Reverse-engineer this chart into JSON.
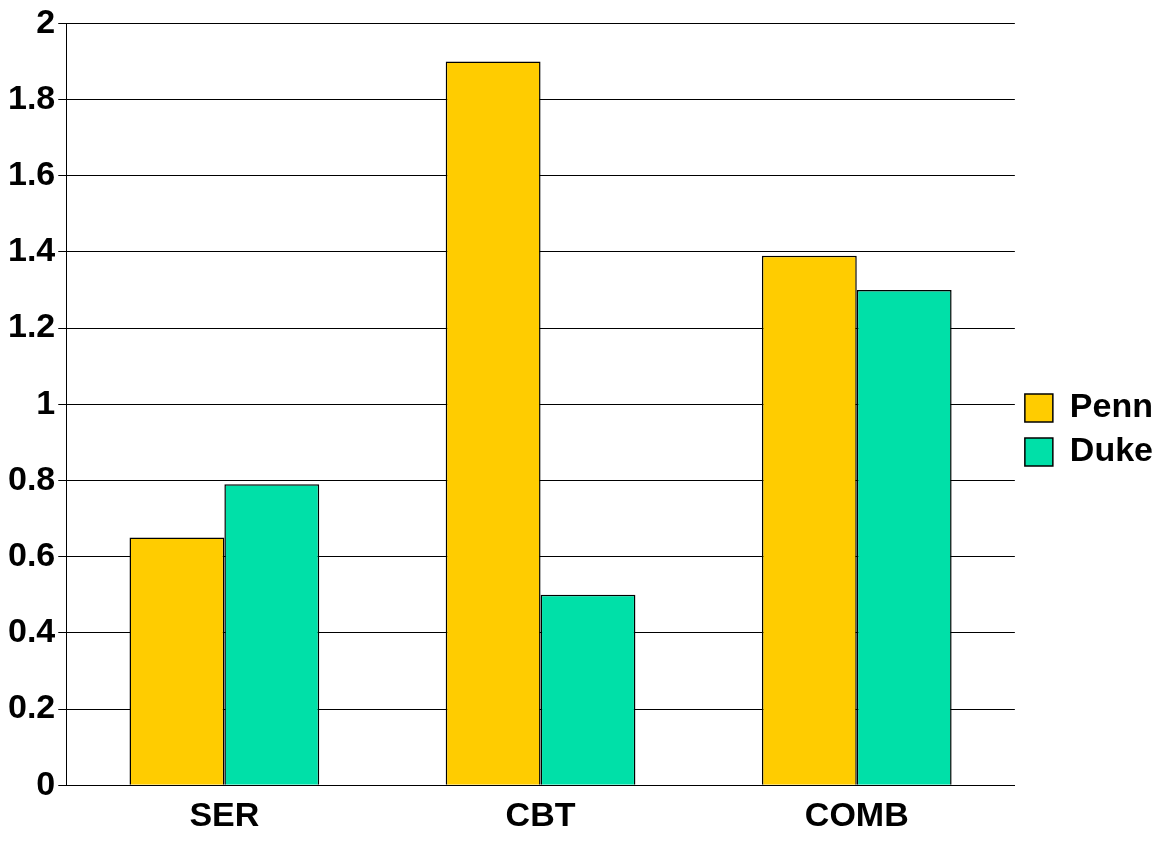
{
  "chart_data": {
    "type": "bar",
    "categories": [
      "SER",
      "CBT",
      "COMB"
    ],
    "series": [
      {
        "name": "Penn",
        "color": "#ffcc00",
        "values": [
          0.65,
          1.9,
          1.39
        ]
      },
      {
        "name": "Duke",
        "color": "#00e0a8",
        "values": [
          0.79,
          0.5,
          1.3
        ]
      }
    ],
    "ylim": [
      0,
      2
    ],
    "yticks": [
      0,
      0.2,
      0.4,
      0.6,
      0.8,
      1,
      1.2,
      1.4,
      1.6,
      1.8,
      2
    ],
    "grid": "y",
    "legend": "right"
  }
}
